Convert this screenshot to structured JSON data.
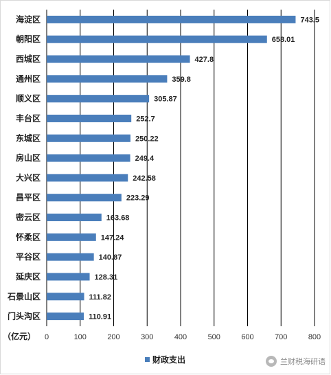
{
  "chart_data": {
    "type": "bar",
    "orientation": "horizontal",
    "categories": [
      "海淀区",
      "朝阳区",
      "西城区",
      "通州区",
      "顺义区",
      "丰台区",
      "东城区",
      "房山区",
      "大兴区",
      "昌平区",
      "密云区",
      "怀柔区",
      "平谷区",
      "延庆区",
      "石景山区",
      "门头沟区"
    ],
    "series": [
      {
        "name": "财政支出",
        "values": [
          743.5,
          658.01,
          427.8,
          359.8,
          305.87,
          252.7,
          250.22,
          249.4,
          242.58,
          223.29,
          163.68,
          147.24,
          140.87,
          128.31,
          111.82,
          110.91
        ],
        "value_labels": [
          "743.5",
          "658.01",
          "427.8",
          "359.8",
          "305.87",
          "252.7",
          "250.22",
          "249.4",
          "242.58",
          "223.29",
          "163.68",
          "147.24",
          "140.87",
          "128.31",
          "111.82",
          "110.91"
        ],
        "color": "#4a7ebb"
      }
    ],
    "xlim": [
      0,
      800
    ],
    "xticks": [
      "0",
      "100",
      "200",
      "300",
      "400",
      "500",
      "600",
      "700",
      "800"
    ],
    "unit_label": "（亿元）",
    "grid": "vertical",
    "legend": "bottom"
  },
  "watermark": {
    "icon": "wechat-icon",
    "text": "兰财税海研语"
  }
}
